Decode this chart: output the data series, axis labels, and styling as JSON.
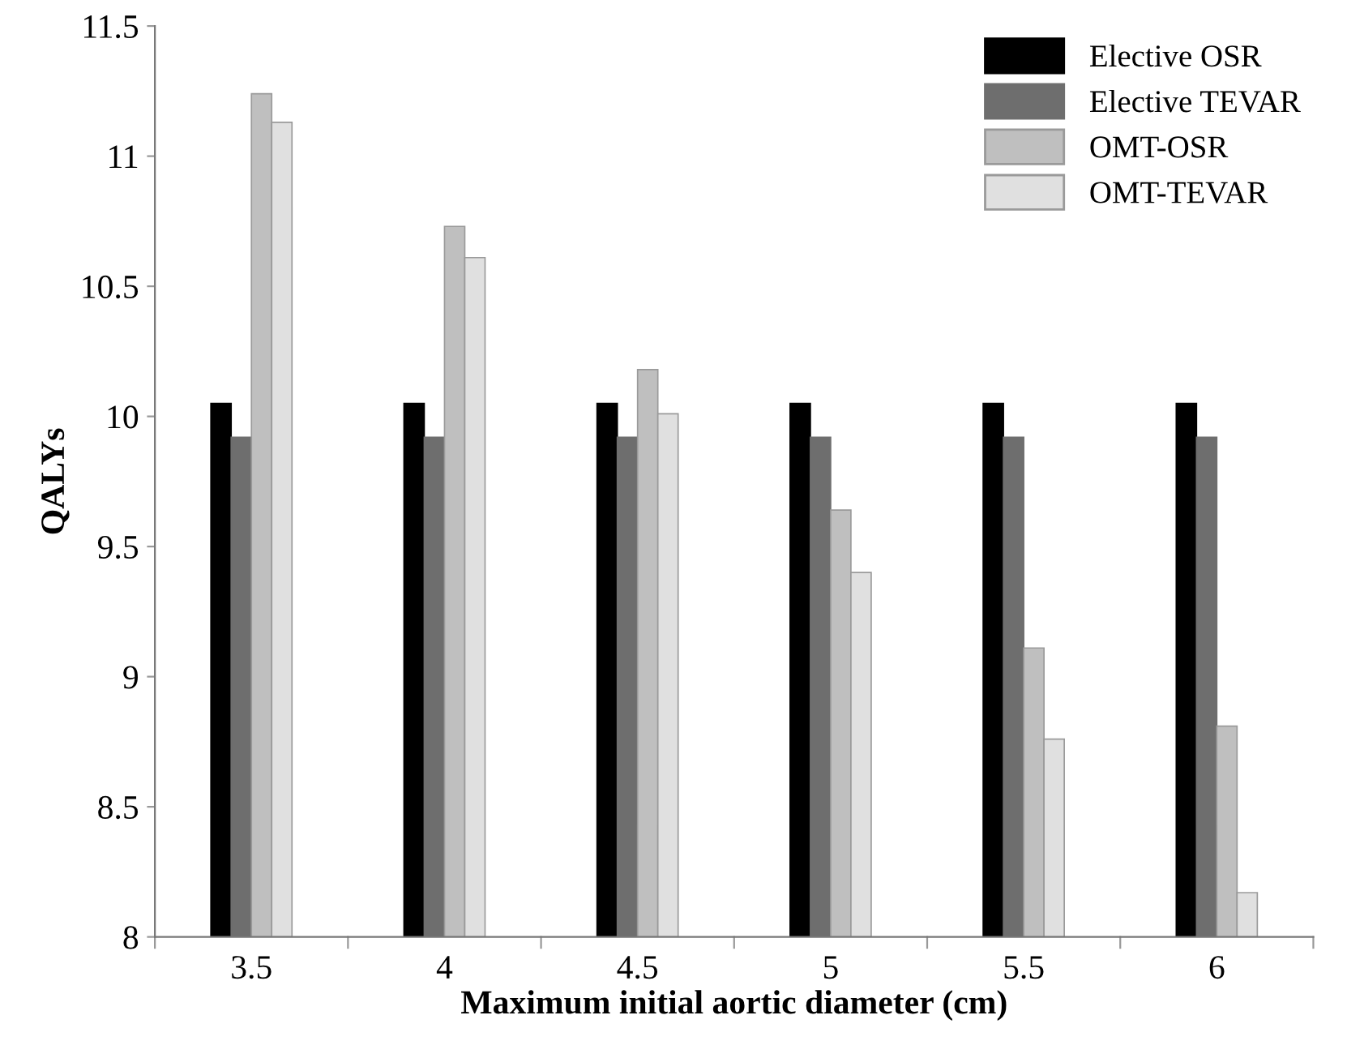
{
  "chart_data": {
    "type": "bar",
    "xlabel": "Maximum initial aortic diameter (cm)",
    "ylabel": "QALYs",
    "categories": [
      "3.5",
      "4",
      "4.5",
      "5",
      "5.5",
      "6"
    ],
    "series": [
      {
        "name": "Elective OSR",
        "color": "#000000",
        "values": [
          10.05,
          10.05,
          10.05,
          10.05,
          10.05,
          10.05
        ]
      },
      {
        "name": "Elective TEVAR",
        "color": "#6e6e6e",
        "values": [
          9.92,
          9.92,
          9.92,
          9.92,
          9.92,
          9.92
        ]
      },
      {
        "name": "OMT-OSR",
        "color": "#bfbfbf",
        "values": [
          11.24,
          10.73,
          10.18,
          9.64,
          9.11,
          8.81
        ]
      },
      {
        "name": "OMT-TEVAR",
        "color": "#e0e0e0",
        "values": [
          11.13,
          10.61,
          10.01,
          9.4,
          8.76,
          8.17
        ]
      }
    ],
    "ylim": [
      8,
      11.5
    ],
    "yticks": [
      8,
      8.5,
      9,
      9.5,
      10,
      10.5,
      11,
      11.5
    ],
    "grid": false,
    "legend": "top right"
  }
}
